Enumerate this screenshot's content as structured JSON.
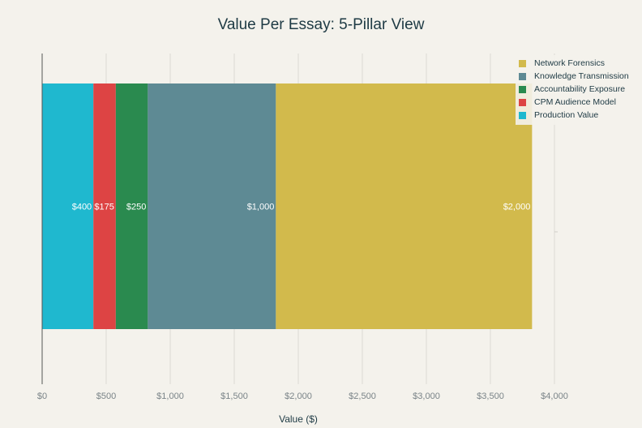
{
  "chart_data": {
    "type": "bar",
    "orientation": "horizontal",
    "stacked": true,
    "title": "Value Per Essay: 5-Pillar View",
    "xlabel": "Value ($)",
    "ylabel": "",
    "xlim": [
      0,
      4000
    ],
    "xticks": [
      0,
      500,
      1000,
      1500,
      2000,
      2500,
      3000,
      3500,
      4000
    ],
    "xtick_labels": [
      "$0",
      "$500",
      "$1,000",
      "$1,500",
      "$2,000",
      "$2,500",
      "$3,000",
      "$3,500",
      "$4,000"
    ],
    "grid": true,
    "legend_position": "top-right",
    "categories": [
      ""
    ],
    "series": [
      {
        "name": "Production Value",
        "values": [
          400
        ],
        "label": "$400",
        "color": "#1fb8cf"
      },
      {
        "name": "CPM Audience Model",
        "values": [
          175
        ],
        "label": "$175",
        "color": "#dd4444"
      },
      {
        "name": "Accountability Exposure",
        "values": [
          250
        ],
        "label": "$250",
        "color": "#2a8a4f"
      },
      {
        "name": "Knowledge Transmission",
        "values": [
          1000
        ],
        "label": "$1,000",
        "color": "#5e8a94"
      },
      {
        "name": "Network Forensics",
        "values": [
          2000
        ],
        "label": "$2,000",
        "color": "#d2ba4c"
      }
    ],
    "legend_order": [
      "Network Forensics",
      "Knowledge Transmission",
      "Accountability Exposure",
      "CPM Audience Model",
      "Production Value"
    ]
  }
}
